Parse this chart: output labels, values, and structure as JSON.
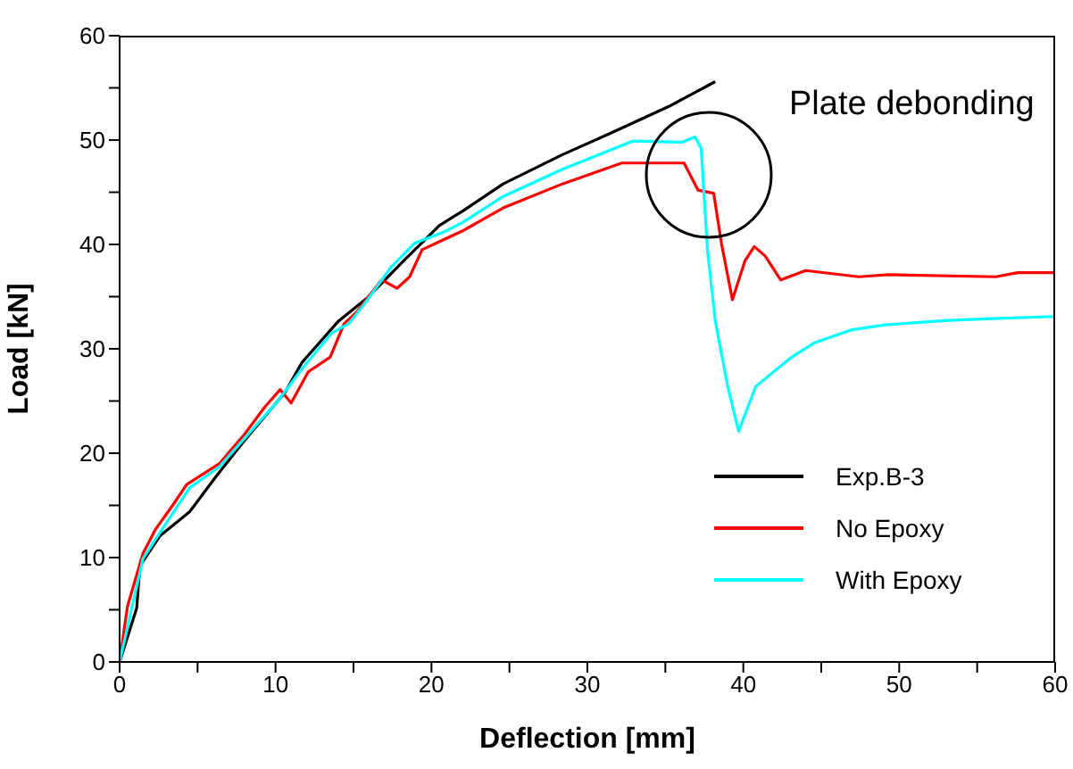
{
  "chart_data": {
    "type": "line",
    "xlabel": "Deflection [mm]",
    "ylabel": "Load [kN]",
    "xlim": [
      0,
      60
    ],
    "ylim": [
      0,
      60
    ],
    "xticks": [
      0,
      {
        "value": 5,
        "label": null
      },
      10,
      {
        "value": 15,
        "label": null
      },
      20,
      {
        "value": 25,
        "label": null
      },
      30,
      {
        "value": 35,
        "label": null
      },
      40,
      {
        "value": 45,
        "label": null
      },
      50,
      {
        "value": 55,
        "label": null
      },
      60
    ],
    "yticks": [
      0,
      {
        "value": 5,
        "label": null
      },
      10,
      {
        "value": 15,
        "label": null
      },
      20,
      {
        "value": 25,
        "label": null
      },
      30,
      {
        "value": 35,
        "label": null
      },
      40,
      {
        "value": 45,
        "label": null
      },
      50,
      {
        "value": 55,
        "label": null
      },
      60
    ],
    "grid": false,
    "legend": "bottom right",
    "marker": "none",
    "line_style": "solid",
    "annotations": [
      "Plate debonding"
    ],
    "series": [
      {
        "name": "Exp.B-3",
        "color": "#000000",
        "x": [
          0,
          1.1,
          1.3,
          2.6,
          4.5,
          6.2,
          8,
          10.6,
          11.7,
          14,
          15.9,
          18.2,
          20.5,
          22,
          24.6,
          28.4,
          31.4,
          35.2,
          38.2
        ],
        "values": [
          0,
          5.2,
          9.2,
          12.1,
          14.4,
          17.8,
          21.2,
          25.8,
          28.7,
          32.6,
          34.9,
          38.4,
          41.8,
          43.2,
          45.8,
          48.6,
          50.6,
          53.2,
          55.6
        ]
      },
      {
        "name": "No Epoxy",
        "color": "#ff0000",
        "x": [
          0,
          0.5,
          1.5,
          2.3,
          3.4,
          4.3,
          6.4,
          8,
          9.3,
          10.3,
          11,
          12.1,
          13.5,
          14.4,
          15.2,
          16.8,
          17.8,
          18.6,
          19.4,
          22,
          24.6,
          28.4,
          32.2,
          36.2,
          37.1,
          38.1,
          38.6,
          39.3,
          40.1,
          40.7,
          41.4,
          42.4,
          44,
          47.4,
          49.3,
          56.2,
          57.6,
          60
        ],
        "values": [
          0,
          5.3,
          10.4,
          12.7,
          15,
          17,
          19,
          21.8,
          24.4,
          26.1,
          24.8,
          27.8,
          29.2,
          32.4,
          33.5,
          36.6,
          35.8,
          36.9,
          39.5,
          41.3,
          43.5,
          45.8,
          47.8,
          47.8,
          45.2,
          44.9,
          40.1,
          34.7,
          38.4,
          39.8,
          38.9,
          36.6,
          37.5,
          36.9,
          37.1,
          36.9,
          37.3,
          37.3
        ]
      },
      {
        "name": "With Epoxy",
        "color": "#00ffff",
        "x": [
          0,
          1.5,
          2.2,
          4.5,
          6.4,
          8.6,
          10.1,
          11.7,
          13.6,
          14.7,
          15.9,
          17.4,
          18.9,
          20.8,
          22,
          24.6,
          28.4,
          32.9,
          36.1,
          36.9,
          37.3,
          37.7,
          38.2,
          39,
          39.7,
          40.8,
          43.1,
          44.6,
          46.9,
          49.1,
          52.9,
          56,
          60
        ],
        "values": [
          0,
          9.9,
          11.5,
          16.7,
          18.7,
          22.4,
          24.9,
          28.1,
          31.5,
          32.4,
          34.7,
          37.8,
          40.1,
          41.2,
          42.1,
          44.6,
          47.2,
          49.9,
          49.8,
          50.3,
          49.2,
          39.5,
          32.7,
          26.4,
          22.1,
          26.4,
          29.2,
          30.6,
          31.8,
          32.3,
          32.7,
          32.9,
          33.1
        ]
      }
    ]
  }
}
